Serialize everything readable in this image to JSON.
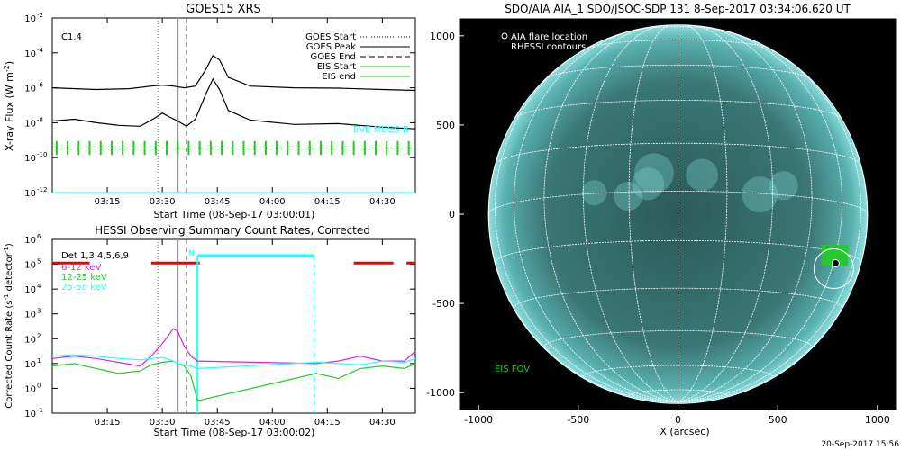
{
  "chart_data": [
    {
      "type": "line",
      "title": "GOES15 XRS",
      "xlabel": "Start Time (08-Sep-17 03:00:01)",
      "ylabel": "X-ray Flux (W m",
      "ylabel_sup": "-2",
      "ylabel_end": ")",
      "yscale": "log",
      "xlim": [
        3.0,
        4.65
      ],
      "ylim_exp": [
        -12,
        -2
      ],
      "xticks": [
        3.25,
        3.5,
        3.75,
        4.0,
        4.25,
        4.5
      ],
      "xtick_labels": [
        "03:15",
        "03:30",
        "03:45",
        "04:00",
        "04:15",
        "04:30"
      ],
      "yticks_exp": [
        -12,
        -10,
        -8,
        -6,
        -4,
        -2
      ],
      "ytick_base": "10",
      "class_label": "C1.4",
      "eve_label": "EVE MEGS-B",
      "legend": [
        {
          "label": "GOES Start",
          "style": "dotted",
          "color": "#000000"
        },
        {
          "label": "GOES Peak",
          "style": "solid",
          "color": "#000000"
        },
        {
          "label": "GOES End",
          "style": "dashed",
          "color": "#000000"
        },
        {
          "label": "EIS Start",
          "style": "solid",
          "color": "#22cc22"
        },
        {
          "label": "EIS end",
          "style": "solid",
          "color": "#22cc22"
        }
      ],
      "markers": {
        "goes_start": 3.48,
        "goes_peak": 3.57,
        "goes_end": 3.61
      },
      "series": [
        {
          "color": "#000000",
          "x": [
            3.0,
            3.2,
            3.35,
            3.45,
            3.5,
            3.55,
            3.6,
            3.65,
            3.7,
            3.73,
            3.76,
            3.8,
            3.9,
            4.1,
            4.3,
            4.5,
            4.65
          ],
          "y": [
            -6.0,
            -6.1,
            -6.05,
            -5.9,
            -5.85,
            -5.9,
            -6.0,
            -5.9,
            -4.9,
            -4.15,
            -4.4,
            -5.4,
            -5.9,
            -6.0,
            -6.02,
            -6.1,
            -6.15
          ]
        },
        {
          "color": "#000000",
          "x": [
            3.0,
            3.1,
            3.2,
            3.3,
            3.4,
            3.47,
            3.5,
            3.53,
            3.57,
            3.61,
            3.65,
            3.7,
            3.73,
            3.76,
            3.8,
            3.9,
            4.1,
            4.3,
            4.5,
            4.65
          ],
          "y": [
            -7.9,
            -7.8,
            -8.0,
            -8.15,
            -8.2,
            -7.7,
            -7.45,
            -7.65,
            -7.9,
            -8.2,
            -7.8,
            -6.3,
            -5.5,
            -6.1,
            -7.3,
            -7.85,
            -8.1,
            -8.05,
            -8.25,
            -8.35
          ]
        },
        {
          "color": "#22ffff",
          "x": [
            3.0,
            4.65
          ],
          "y": [
            -12,
            -12
          ]
        }
      ]
    },
    {
      "type": "line",
      "title": "HESSI Observing Summary Count Rates, Corrected",
      "xlabel": "Start Time (08-Sep-17 03:00:02)",
      "ylabel": "Corrected Count Rate (s",
      "ylabel_sup": "-1",
      "ylabel_mid": " detector",
      "ylabel_end": ")",
      "yscale": "log",
      "xlim": [
        3.0,
        4.65
      ],
      "ylim_exp": [
        -1,
        6
      ],
      "xticks": [
        3.25,
        3.5,
        3.75,
        4.0,
        4.25,
        4.5
      ],
      "xtick_labels": [
        "03:15",
        "03:30",
        "03:45",
        "04:00",
        "04:15",
        "04:30"
      ],
      "yticks_exp": [
        -1,
        0,
        1,
        2,
        3,
        4,
        5,
        6
      ],
      "ytick_base": "10",
      "det_label": "Det 1,3,4,5,6,9",
      "n_label": "N",
      "legend": [
        {
          "label": "6-12 keV",
          "color": "#dd22dd"
        },
        {
          "label": "12-25 keV",
          "color": "#22cc22"
        },
        {
          "label": "25-50 keV",
          "color": "#22ffff"
        }
      ],
      "markers": {
        "goes_start": 3.48,
        "goes_peak": 3.57,
        "goes_end": 3.61
      },
      "red_segments": [
        [
          3.0,
          3.17
        ],
        [
          3.45,
          3.67
        ],
        [
          4.37,
          4.55
        ],
        [
          4.61,
          4.65
        ]
      ],
      "night_segment": [
        3.66,
        4.19
      ],
      "series": [
        {
          "name": "6-12 keV",
          "color": "#dd22dd",
          "x": [
            3.0,
            3.1,
            3.2,
            3.3,
            3.4,
            3.45,
            3.5,
            3.55,
            3.57,
            3.6,
            3.63,
            3.66,
            4.2,
            4.3,
            4.4,
            4.5,
            4.6,
            4.65
          ],
          "y": [
            1.2,
            1.3,
            1.2,
            1.05,
            0.9,
            1.3,
            1.8,
            2.4,
            2.3,
            1.7,
            1.3,
            1.1,
            1.0,
            1.1,
            1.3,
            1.1,
            1.1,
            1.5
          ]
        },
        {
          "name": "12-25 keV",
          "color": "#22cc22",
          "x": [
            3.0,
            3.1,
            3.2,
            3.3,
            3.4,
            3.45,
            3.5,
            3.55,
            3.57,
            3.6,
            3.63,
            3.66,
            4.2,
            4.3,
            4.4,
            4.5,
            4.6,
            4.65
          ],
          "y": [
            0.9,
            1.0,
            0.8,
            0.6,
            0.7,
            0.95,
            1.05,
            1.1,
            1.0,
            0.9,
            0.5,
            -0.5,
            0.6,
            0.4,
            0.8,
            0.9,
            0.8,
            1.0
          ]
        },
        {
          "name": "25-50 keV",
          "color": "#22ffff",
          "x": [
            3.0,
            3.1,
            3.2,
            3.3,
            3.4,
            3.45,
            3.5,
            3.55,
            3.57,
            3.6,
            3.63,
            3.66,
            4.2,
            4.3,
            4.4,
            4.5,
            4.6,
            4.65
          ],
          "y": [
            1.3,
            1.35,
            1.3,
            1.2,
            1.15,
            1.2,
            1.25,
            1.1,
            1.0,
            0.95,
            0.9,
            0.8,
            1.05,
            1.0,
            0.95,
            1.1,
            1.05,
            1.2
          ]
        }
      ]
    },
    {
      "type": "scatter",
      "title": "SDO/AIA AIA_1 SDO/JSOC-SDP 131  8-Sep-2017 03:34:06.620 UT",
      "xlabel": "X (arcsec)",
      "ylabel": "",
      "xlim": [
        -1100,
        1100
      ],
      "ylim": [
        -1100,
        1100
      ],
      "xticks": [
        -1000,
        -500,
        0,
        500,
        1000
      ],
      "yticks": [
        -1000,
        -500,
        0,
        500,
        1000
      ],
      "legend": [
        {
          "label": "AIA flare location",
          "marker": "circle"
        },
        {
          "label": "RHESSI contours"
        }
      ],
      "eis_fov_label": "EIS FOV",
      "timestamp": "20-Sep-2017 15:56",
      "disk_radius_arcsec": 950,
      "flare_location": [
        790,
        -275
      ],
      "eis_fov": {
        "x": [
          720,
          850
        ],
        "y": [
          -285,
          -175
        ]
      }
    }
  ],
  "colors": {
    "goes": "#000000",
    "eis": "#22cc22",
    "eve": "#22ffff",
    "hessi_red": "#ee0000",
    "sun_bg": "#000000"
  }
}
